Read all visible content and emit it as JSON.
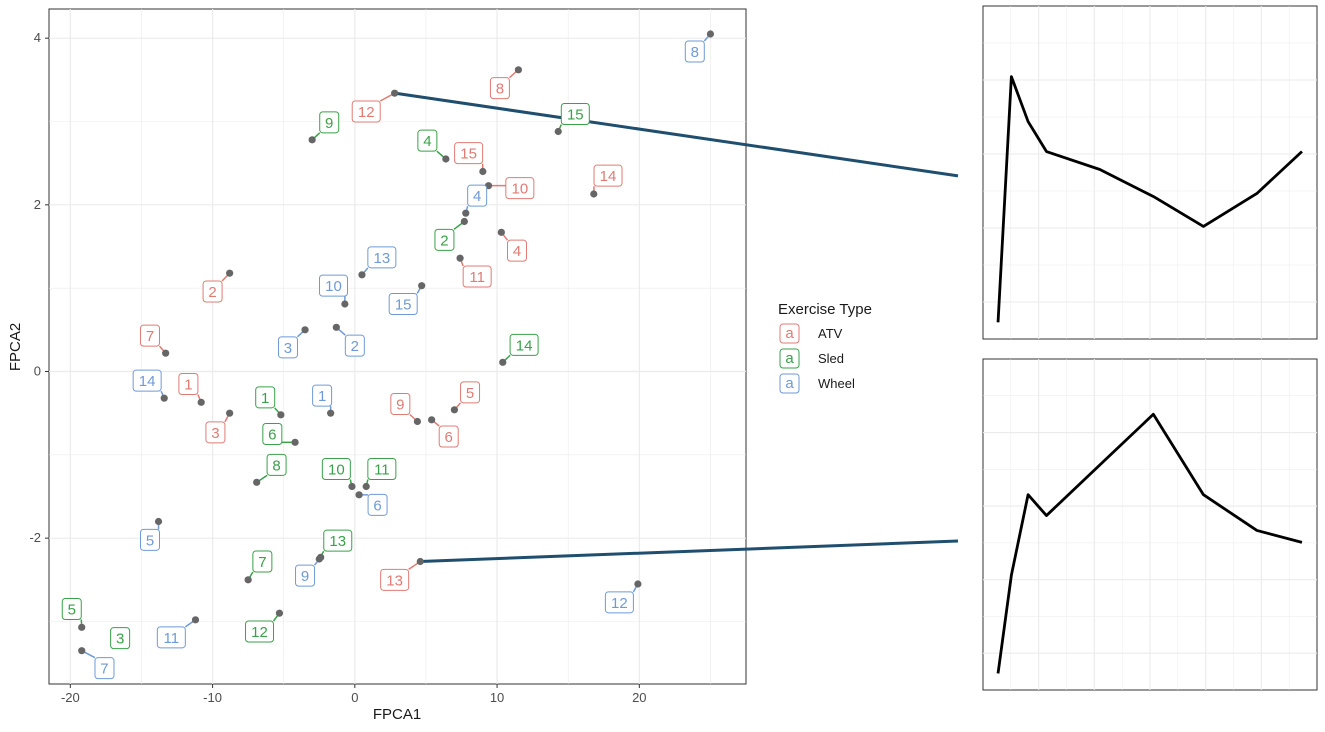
{
  "chart_data": [
    {
      "type": "scatter",
      "xlabel": "FPCA1",
      "ylabel": "FPCA2",
      "xlim": [
        -21.5,
        27.5
      ],
      "ylim": [
        -3.75,
        4.35
      ],
      "x_ticks": [
        -20,
        -10,
        0,
        10,
        20
      ],
      "y_ticks": [
        -2,
        0,
        2,
        4
      ],
      "x_tick_labels": [
        "-20",
        "-10",
        "0",
        "10",
        "20"
      ],
      "y_tick_labels": [
        "-2",
        "0",
        "2",
        "4"
      ],
      "grid": true,
      "legend": {
        "title": "Exercise Type",
        "position": "right",
        "key_glyph": "a",
        "entries": [
          "ATV",
          "Sled",
          "Wheel"
        ]
      },
      "colors": {
        "ATV": "#e07b74",
        "Sled": "#3aa14a",
        "Wheel": "#6f9ad6"
      },
      "point_color": "#666666",
      "series": [
        {
          "name": "ATV",
          "points": [
            {
              "label": "1",
              "x": -10.8,
              "y": -0.37,
              "lx": -11.7,
              "ly": -0.15
            },
            {
              "label": "2",
              "x": -8.8,
              "y": 1.18,
              "lx": -10.0,
              "ly": 0.96
            },
            {
              "label": "3",
              "x": -8.8,
              "y": -0.5,
              "lx": -9.8,
              "ly": -0.73
            },
            {
              "label": "4",
              "x": 10.3,
              "y": 1.67,
              "lx": 11.4,
              "ly": 1.45
            },
            {
              "label": "5",
              "x": 7.0,
              "y": -0.46,
              "lx": 8.1,
              "ly": -0.25
            },
            {
              "label": "6",
              "x": 5.4,
              "y": -0.58,
              "lx": 6.6,
              "ly": -0.78
            },
            {
              "label": "7",
              "x": -13.3,
              "y": 0.22,
              "lx": -14.4,
              "ly": 0.43
            },
            {
              "label": "8",
              "x": 11.5,
              "y": 3.62,
              "lx": 10.2,
              "ly": 3.4
            },
            {
              "label": "9",
              "x": 4.4,
              "y": -0.6,
              "lx": 3.2,
              "ly": -0.39
            },
            {
              "label": "10",
              "x": 9.4,
              "y": 2.23,
              "lx": 11.6,
              "ly": 2.2
            },
            {
              "label": "11",
              "x": 7.4,
              "y": 1.36,
              "lx": 8.6,
              "ly": 1.14
            },
            {
              "label": "12",
              "x": 2.8,
              "y": 3.34,
              "lx": 0.8,
              "ly": 3.12
            },
            {
              "label": "13",
              "x": 4.6,
              "y": -2.28,
              "lx": 2.8,
              "ly": -2.5
            },
            {
              "label": "14",
              "x": 16.8,
              "y": 2.13,
              "lx": 17.8,
              "ly": 2.35
            },
            {
              "label": "15",
              "x": 9.0,
              "y": 2.4,
              "lx": 8.0,
              "ly": 2.62
            }
          ]
        },
        {
          "name": "Sled",
          "points": [
            {
              "label": "1",
              "x": -5.2,
              "y": -0.52,
              "lx": -6.3,
              "ly": -0.31
            },
            {
              "label": "2",
              "x": 7.7,
              "y": 1.8,
              "lx": 6.3,
              "ly": 1.58
            },
            {
              "label": "3",
              "x": -16.5,
              "y": -3.2,
              "lx": -16.5,
              "ly": -3.2
            },
            {
              "label": "4",
              "x": 6.4,
              "y": 2.55,
              "lx": 5.1,
              "ly": 2.77
            },
            {
              "label": "5",
              "x": -19.2,
              "y": -3.07,
              "lx": -19.9,
              "ly": -2.85
            },
            {
              "label": "6",
              "x": -4.2,
              "y": -0.85,
              "lx": -5.8,
              "ly": -0.75
            },
            {
              "label": "7",
              "x": -7.5,
              "y": -2.5,
              "lx": -6.5,
              "ly": -2.28
            },
            {
              "label": "8",
              "x": -6.9,
              "y": -1.33,
              "lx": -5.5,
              "ly": -1.12
            },
            {
              "label": "9",
              "x": -3.0,
              "y": 2.78,
              "lx": -1.8,
              "ly": 2.99
            },
            {
              "label": "10",
              "x": -0.2,
              "y": -1.38,
              "lx": -1.3,
              "ly": -1.17
            },
            {
              "label": "11",
              "x": 0.8,
              "y": -1.38,
              "lx": 1.9,
              "ly": -1.17
            },
            {
              "label": "12",
              "x": -5.3,
              "y": -2.9,
              "lx": -6.7,
              "ly": -3.12
            },
            {
              "label": "13",
              "x": -2.5,
              "y": -2.25,
              "lx": -1.2,
              "ly": -2.03
            },
            {
              "label": "14",
              "x": 10.4,
              "y": 0.11,
              "lx": 11.9,
              "ly": 0.32
            },
            {
              "label": "15",
              "x": 14.3,
              "y": 2.88,
              "lx": 15.5,
              "ly": 3.09
            }
          ]
        },
        {
          "name": "Wheel",
          "points": [
            {
              "label": "1",
              "x": -1.7,
              "y": -0.5,
              "lx": -2.3,
              "ly": -0.29
            },
            {
              "label": "2",
              "x": -1.3,
              "y": 0.53,
              "lx": 0.0,
              "ly": 0.31
            },
            {
              "label": "3",
              "x": -3.5,
              "y": 0.5,
              "lx": -4.7,
              "ly": 0.29
            },
            {
              "label": "4",
              "x": 7.8,
              "y": 1.9,
              "lx": 8.6,
              "ly": 2.11
            },
            {
              "label": "5",
              "x": -13.8,
              "y": -1.8,
              "lx": -14.4,
              "ly": -2.02
            },
            {
              "label": "6",
              "x": 0.3,
              "y": -1.48,
              "lx": 1.6,
              "ly": -1.6
            },
            {
              "label": "7",
              "x": -19.2,
              "y": -3.35,
              "lx": -17.6,
              "ly": -3.56
            },
            {
              "label": "8",
              "x": 25.0,
              "y": 4.05,
              "lx": 23.9,
              "ly": 3.84
            },
            {
              "label": "9",
              "x": -2.4,
              "y": -2.23,
              "lx": -3.5,
              "ly": -2.45
            },
            {
              "label": "10",
              "x": -0.7,
              "y": 0.81,
              "lx": -1.5,
              "ly": 1.03
            },
            {
              "label": "11",
              "x": -11.2,
              "y": -2.98,
              "lx": -12.9,
              "ly": -3.19
            },
            {
              "label": "12",
              "x": 19.9,
              "y": -2.55,
              "lx": 18.6,
              "ly": -2.77
            },
            {
              "label": "13",
              "x": 0.5,
              "y": 1.16,
              "lx": 1.9,
              "ly": 1.37
            },
            {
              "label": "14",
              "x": -13.4,
              "y": -0.32,
              "lx": -14.6,
              "ly": -0.11
            },
            {
              "label": "15",
              "x": 4.7,
              "y": 1.03,
              "lx": 3.4,
              "ly": 0.81
            }
          ]
        }
      ],
      "connectors": [
        {
          "from_series": "ATV",
          "from_label": "12",
          "to_panel": 1
        },
        {
          "from_series": "ATV",
          "from_label": "13",
          "to_panel": 2
        }
      ]
    },
    {
      "type": "line",
      "panel": 1,
      "x": [
        0,
        1,
        2,
        3,
        4,
        5,
        6,
        7,
        8
      ],
      "values": [
        0.0,
        0.82,
        0.67,
        0.57,
        0.51,
        0.42,
        0.32,
        0.43,
        0.57
      ],
      "grid": true
    },
    {
      "type": "line",
      "panel": 2,
      "x": [
        0,
        1,
        2,
        3,
        4,
        5,
        6,
        7,
        8
      ],
      "values": [
        0.0,
        0.33,
        0.6,
        0.53,
        0.7,
        0.87,
        0.6,
        0.48,
        0.44
      ],
      "grid": true
    }
  ]
}
